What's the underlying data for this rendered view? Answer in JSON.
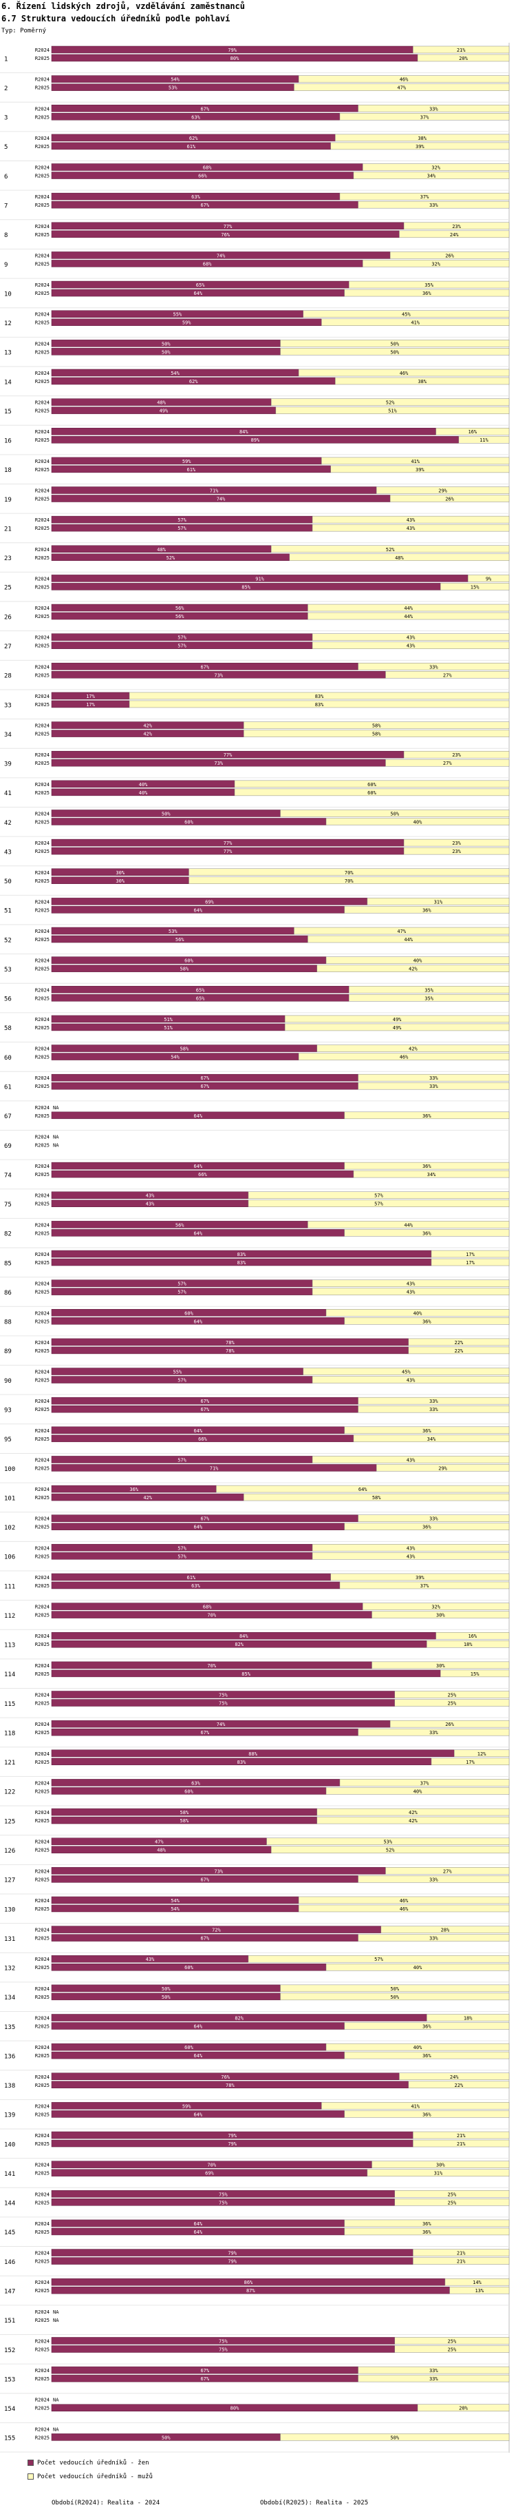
{
  "header": {
    "section": "6. Řízení lidských zdrojů, vzdělávání zaměstnanců",
    "title": "6.7 Struktura vedoucích úředníků podle pohlaví",
    "subtitle": "Typ: Poměrný"
  },
  "colors": {
    "women": "#8e2e5c",
    "men": "#fffbbe",
    "na_bar": "#ffffff"
  },
  "legend": {
    "women": "Počet vedoucích úředníků - žen",
    "men": "Počet vedoucích úředníků - mužů"
  },
  "footer": {
    "source_2024": "Období(R2024): Realita - 2024",
    "source_2025": "Období(R2025): Realita - 2025"
  },
  "chart_data": {
    "type": "bar",
    "orientation": "horizontal-stacked-100",
    "series": [
      {
        "name": "Počet vedoucích úředníků - žen",
        "key": "women"
      },
      {
        "name": "Počet vedoucích úředníků - mužů",
        "key": "men"
      }
    ],
    "period_labels": [
      "R2024",
      "R2025"
    ],
    "groups": [
      {
        "id": "1",
        "r2024": [
          79,
          21
        ],
        "r2025": [
          80,
          20
        ]
      },
      {
        "id": "2",
        "r2024": [
          54,
          46
        ],
        "r2025": [
          53,
          47
        ]
      },
      {
        "id": "3",
        "r2024": [
          67,
          33
        ],
        "r2025": [
          63,
          37
        ]
      },
      {
        "id": "5",
        "r2024": [
          62,
          38
        ],
        "r2025": [
          61,
          39
        ]
      },
      {
        "id": "6",
        "r2024": [
          68,
          32
        ],
        "r2025": [
          66,
          34
        ]
      },
      {
        "id": "7",
        "r2024": [
          63,
          37
        ],
        "r2025": [
          67,
          33
        ]
      },
      {
        "id": "8",
        "r2024": [
          77,
          23
        ],
        "r2025": [
          76,
          24
        ]
      },
      {
        "id": "9",
        "r2024": [
          74,
          26
        ],
        "r2025": [
          68,
          32
        ]
      },
      {
        "id": "10",
        "r2024": [
          65,
          35
        ],
        "r2025": [
          64,
          36
        ]
      },
      {
        "id": "12",
        "r2024": [
          55,
          45
        ],
        "r2025": [
          59,
          41
        ]
      },
      {
        "id": "13",
        "r2024": [
          50,
          50
        ],
        "r2025": [
          50,
          50
        ]
      },
      {
        "id": "14",
        "r2024": [
          54,
          46
        ],
        "r2025": [
          62,
          38
        ]
      },
      {
        "id": "15",
        "r2024": [
          48,
          52
        ],
        "r2025": [
          49,
          51
        ]
      },
      {
        "id": "16",
        "r2024": [
          84,
          16
        ],
        "r2025": [
          89,
          11
        ]
      },
      {
        "id": "18",
        "r2024": [
          59,
          41
        ],
        "r2025": [
          61,
          39
        ]
      },
      {
        "id": "19",
        "r2024": [
          71,
          29
        ],
        "r2025": [
          74,
          26
        ]
      },
      {
        "id": "21",
        "r2024": [
          57,
          43
        ],
        "r2025": [
          57,
          43
        ]
      },
      {
        "id": "23",
        "r2024": [
          48,
          52
        ],
        "r2025": [
          52,
          48
        ]
      },
      {
        "id": "25",
        "r2024": [
          91,
          9
        ],
        "r2025": [
          85,
          15
        ]
      },
      {
        "id": "26",
        "r2024": [
          56,
          44
        ],
        "r2025": [
          56,
          44
        ]
      },
      {
        "id": "27",
        "r2024": [
          57,
          43
        ],
        "r2025": [
          57,
          43
        ]
      },
      {
        "id": "28",
        "r2024": [
          67,
          33
        ],
        "r2025": [
          73,
          27
        ]
      },
      {
        "id": "33",
        "r2024": [
          17,
          83
        ],
        "r2025": [
          17,
          83
        ]
      },
      {
        "id": "34",
        "r2024": [
          42,
          58
        ],
        "r2025": [
          42,
          58
        ]
      },
      {
        "id": "39",
        "r2024": [
          77,
          23
        ],
        "r2025": [
          73,
          27
        ]
      },
      {
        "id": "41",
        "r2024": [
          40,
          60
        ],
        "r2025": [
          40,
          60
        ]
      },
      {
        "id": "42",
        "r2024": [
          50,
          50
        ],
        "r2025": [
          60,
          40
        ]
      },
      {
        "id": "43",
        "r2024": [
          77,
          23
        ],
        "r2025": [
          77,
          23
        ]
      },
      {
        "id": "50",
        "r2024": [
          30,
          70
        ],
        "r2025": [
          30,
          70
        ]
      },
      {
        "id": "51",
        "r2024": [
          69,
          31
        ],
        "r2025": [
          64,
          36
        ]
      },
      {
        "id": "52",
        "r2024": [
          53,
          47
        ],
        "r2025": [
          56,
          44
        ]
      },
      {
        "id": "53",
        "r2024": [
          60,
          40
        ],
        "r2025": [
          58,
          42
        ]
      },
      {
        "id": "56",
        "r2024": [
          65,
          35
        ],
        "r2025": [
          65,
          35
        ]
      },
      {
        "id": "58",
        "r2024": [
          51,
          49
        ],
        "r2025": [
          51,
          49
        ]
      },
      {
        "id": "60",
        "r2024": [
          58,
          42
        ],
        "r2025": [
          54,
          46
        ]
      },
      {
        "id": "61",
        "r2024": [
          67,
          33
        ],
        "r2025": [
          67,
          33
        ]
      },
      {
        "id": "67",
        "r2024": null,
        "r2025": [
          64,
          36
        ]
      },
      {
        "id": "69",
        "r2024": null,
        "r2025": null
      },
      {
        "id": "74",
        "r2024": [
          64,
          36
        ],
        "r2025": [
          66,
          34
        ]
      },
      {
        "id": "75",
        "r2024": [
          43,
          57
        ],
        "r2025": [
          43,
          57
        ]
      },
      {
        "id": "82",
        "r2024": [
          56,
          44
        ],
        "r2025": [
          64,
          36
        ]
      },
      {
        "id": "85",
        "r2024": [
          83,
          17
        ],
        "r2025": [
          83,
          17
        ]
      },
      {
        "id": "86",
        "r2024": [
          57,
          43
        ],
        "r2025": [
          57,
          43
        ]
      },
      {
        "id": "88",
        "r2024": [
          60,
          40
        ],
        "r2025": [
          64,
          36
        ]
      },
      {
        "id": "89",
        "r2024": [
          78,
          22
        ],
        "r2025": [
          78,
          22
        ]
      },
      {
        "id": "90",
        "r2024": [
          55,
          45
        ],
        "r2025": [
          57,
          43
        ]
      },
      {
        "id": "93",
        "r2024": [
          67,
          33
        ],
        "r2025": [
          67,
          33
        ]
      },
      {
        "id": "95",
        "r2024": [
          64,
          36
        ],
        "r2025": [
          66,
          34
        ]
      },
      {
        "id": "100",
        "r2024": [
          57,
          43
        ],
        "r2025": [
          71,
          29
        ]
      },
      {
        "id": "101",
        "r2024": [
          36,
          64
        ],
        "r2025": [
          42,
          58
        ]
      },
      {
        "id": "102",
        "r2024": [
          67,
          33
        ],
        "r2025": [
          64,
          36
        ]
      },
      {
        "id": "106",
        "r2024": [
          57,
          43
        ],
        "r2025": [
          57,
          43
        ]
      },
      {
        "id": "111",
        "r2024": [
          61,
          39
        ],
        "r2025": [
          63,
          37
        ]
      },
      {
        "id": "112",
        "r2024": [
          68,
          32
        ],
        "r2025": [
          70,
          30
        ]
      },
      {
        "id": "113",
        "r2024": [
          84,
          16
        ],
        "r2025": [
          82,
          18
        ]
      },
      {
        "id": "114",
        "r2024": [
          70,
          30
        ],
        "r2025": [
          85,
          15
        ]
      },
      {
        "id": "115",
        "r2024": [
          75,
          25
        ],
        "r2025": [
          75,
          25
        ]
      },
      {
        "id": "118",
        "r2024": [
          74,
          26
        ],
        "r2025": [
          67,
          33
        ]
      },
      {
        "id": "121",
        "r2024": [
          88,
          12
        ],
        "r2025": [
          83,
          17
        ]
      },
      {
        "id": "122",
        "r2024": [
          63,
          37
        ],
        "r2025": [
          60,
          40
        ]
      },
      {
        "id": "125",
        "r2024": [
          58,
          42
        ],
        "r2025": [
          58,
          42
        ]
      },
      {
        "id": "126",
        "r2024": [
          47,
          53
        ],
        "r2025": [
          48,
          52
        ]
      },
      {
        "id": "127",
        "r2024": [
          73,
          27
        ],
        "r2025": [
          67,
          33
        ]
      },
      {
        "id": "130",
        "r2024": [
          54,
          46
        ],
        "r2025": [
          54,
          46
        ]
      },
      {
        "id": "131",
        "r2024": [
          72,
          28
        ],
        "r2025": [
          67,
          33
        ]
      },
      {
        "id": "132",
        "r2024": [
          43,
          57
        ],
        "r2025": [
          60,
          40
        ]
      },
      {
        "id": "134",
        "r2024": [
          50,
          50
        ],
        "r2025": [
          50,
          50
        ]
      },
      {
        "id": "135",
        "r2024": [
          82,
          18
        ],
        "r2025": [
          64,
          36
        ]
      },
      {
        "id": "136",
        "r2024": [
          60,
          40
        ],
        "r2025": [
          64,
          36
        ]
      },
      {
        "id": "138",
        "r2024": [
          76,
          24
        ],
        "r2025": [
          78,
          22
        ]
      },
      {
        "id": "139",
        "r2024": [
          59,
          41
        ],
        "r2025": [
          64,
          36
        ]
      },
      {
        "id": "140",
        "r2024": [
          79,
          21
        ],
        "r2025": [
          79,
          21
        ]
      },
      {
        "id": "141",
        "r2024": [
          70,
          30
        ],
        "r2025": [
          69,
          31
        ]
      },
      {
        "id": "144",
        "r2024": [
          75,
          25
        ],
        "r2025": [
          75,
          25
        ]
      },
      {
        "id": "145",
        "r2024": [
          64,
          36
        ],
        "r2025": [
          64,
          36
        ]
      },
      {
        "id": "146",
        "r2024": [
          79,
          21
        ],
        "r2025": [
          79,
          21
        ]
      },
      {
        "id": "147",
        "r2024": [
          86,
          14
        ],
        "r2025": [
          87,
          13
        ]
      },
      {
        "id": "151",
        "r2024": null,
        "r2025": null
      },
      {
        "id": "152",
        "r2024": [
          75,
          25
        ],
        "r2025": [
          75,
          25
        ]
      },
      {
        "id": "153",
        "r2024": [
          67,
          33
        ],
        "r2025": [
          67,
          33
        ]
      },
      {
        "id": "154",
        "r2024": null,
        "r2025": [
          80,
          20
        ]
      },
      {
        "id": "155",
        "r2024": null,
        "r2025": [
          50,
          50
        ]
      }
    ],
    "na_label": "NA",
    "value_suffix": "%",
    "xlim": [
      0,
      100
    ]
  }
}
